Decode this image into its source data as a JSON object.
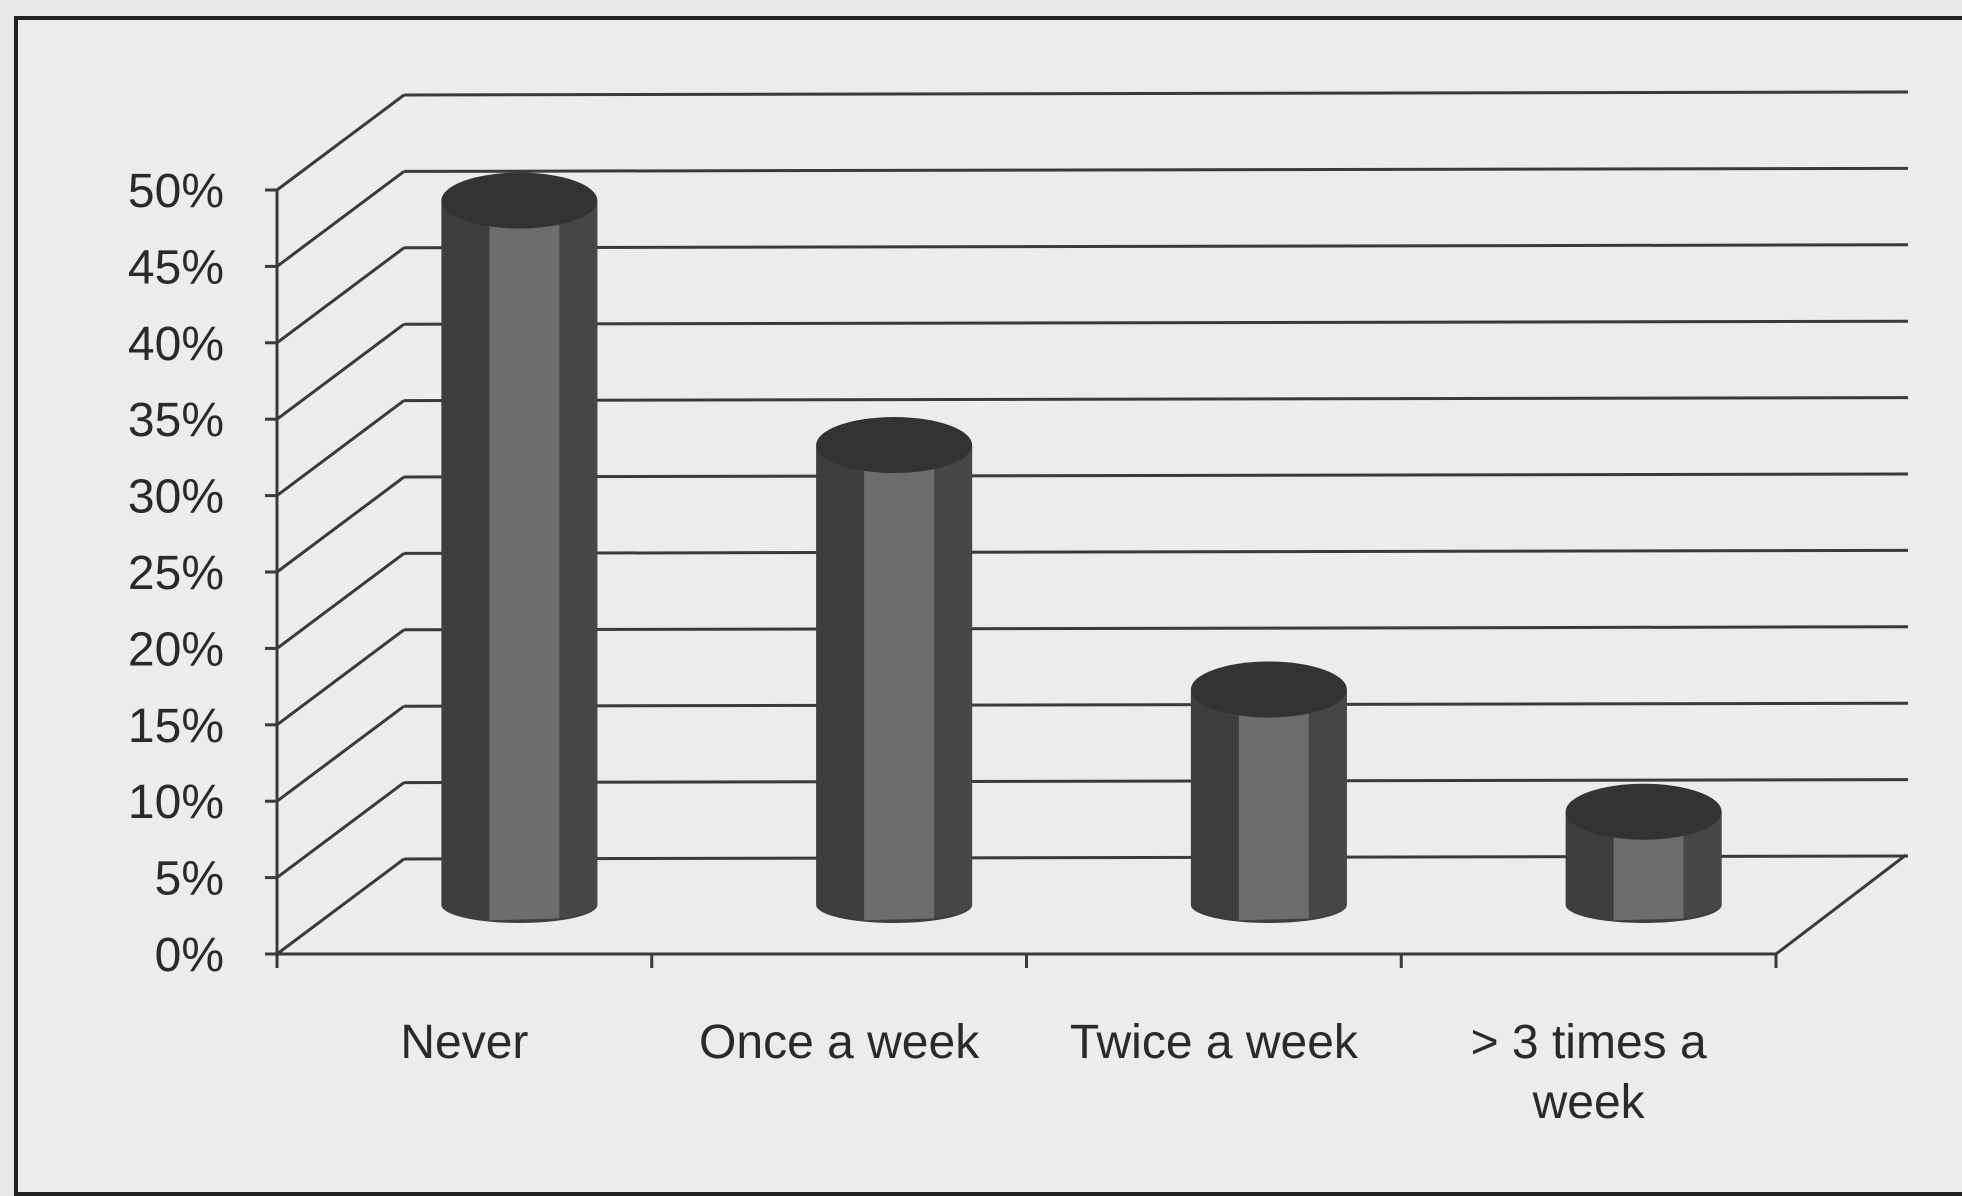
{
  "chart_data": {
    "type": "bar",
    "style": "3d-cylinder",
    "categories": [
      [
        "Never"
      ],
      [
        "Once a week"
      ],
      [
        "Twice a week"
      ],
      [
        "> 3 times a",
        "week"
      ]
    ],
    "values": [
      48,
      32,
      16,
      8
    ],
    "yticks": [
      "0%",
      "5%",
      "10%",
      "15%",
      "20%",
      "25%",
      "30%",
      "35%",
      "40%",
      "45%",
      "50%"
    ],
    "ylim": [
      0,
      50
    ],
    "grid": true,
    "legend": "none",
    "colors": {
      "bar_dark": "#3e3e3e",
      "bar_mid": "#4f4f4f",
      "bar_light": "#6d6d6d",
      "bar_top": "#333333",
      "grid": "#3a3a3a",
      "background": "#ececea"
    }
  }
}
